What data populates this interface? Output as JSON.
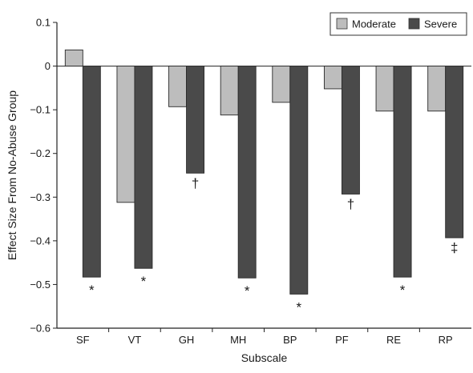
{
  "chart_data": {
    "type": "bar",
    "title": "",
    "xlabel": "Subscale",
    "ylabel": "Effect Size From No-Abuse Group",
    "ylim": [
      -0.6,
      0.1
    ],
    "yticks": [
      "0.1",
      "0",
      "-0.1",
      "-0.2",
      "-0.3",
      "-0.4",
      "-0.5",
      "-0.6"
    ],
    "categories": [
      "SF",
      "VT",
      "GH",
      "MH",
      "BP",
      "PF",
      "RE",
      "RP"
    ],
    "series": [
      {
        "name": "Moderate",
        "color": "#bdbdbd",
        "values": [
          0.037,
          -0.312,
          -0.093,
          -0.112,
          -0.083,
          -0.052,
          -0.103,
          -0.103
        ]
      },
      {
        "name": "Severe",
        "color": "#4a4a4a",
        "values": [
          -0.483,
          -0.463,
          -0.245,
          -0.485,
          -0.522,
          -0.293,
          -0.483,
          -0.393
        ]
      }
    ],
    "annotations": [
      "*",
      "*",
      "†",
      "*",
      "*",
      "†",
      "*",
      "‡"
    ],
    "legend_position": "top-right",
    "grid": false
  }
}
